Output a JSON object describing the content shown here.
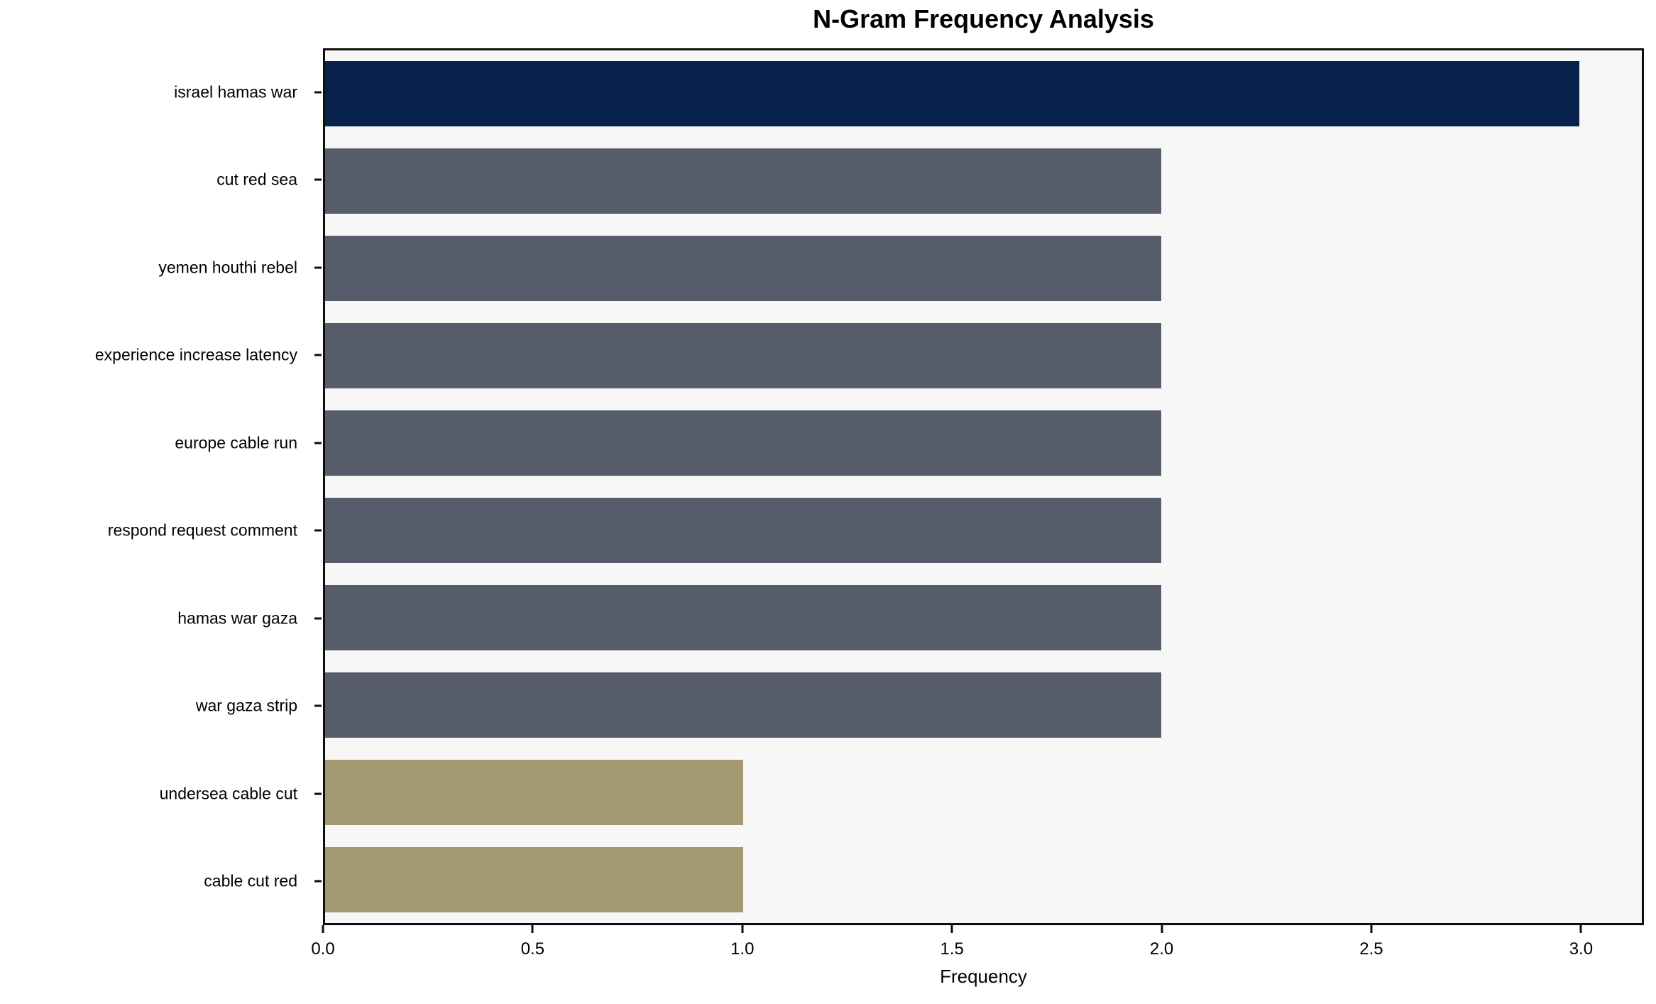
{
  "chart_data": {
    "type": "bar",
    "orientation": "horizontal",
    "title": "N-Gram Frequency Analysis",
    "xlabel": "Frequency",
    "ylabel": "",
    "categories": [
      "israel hamas war",
      "cut red sea",
      "yemen houthi rebel",
      "experience increase latency",
      "europe cable run",
      "respond request comment",
      "hamas war gaza",
      "war gaza strip",
      "undersea cable cut",
      "cable cut red"
    ],
    "values": [
      3,
      2,
      2,
      2,
      2,
      2,
      2,
      2,
      1,
      1
    ],
    "bar_colors": [
      "#07214a",
      "#575c6a",
      "#575c6a",
      "#575c6a",
      "#575c6a",
      "#575c6a",
      "#575c6a",
      "#575c6a",
      "#a49a72",
      "#a49a72"
    ],
    "xticks": [
      "0.0",
      "0.5",
      "1.0",
      "1.5",
      "2.0",
      "2.5",
      "3.0"
    ],
    "xtick_values": [
      0,
      0.5,
      1,
      1.5,
      2,
      2.5,
      3
    ],
    "xlim": [
      0,
      3.15
    ],
    "grid": false,
    "legend_position": "none",
    "plot_background": "#f7f7f7",
    "figure_background": "#ffffff",
    "spine_color": "#0e0e0e"
  }
}
